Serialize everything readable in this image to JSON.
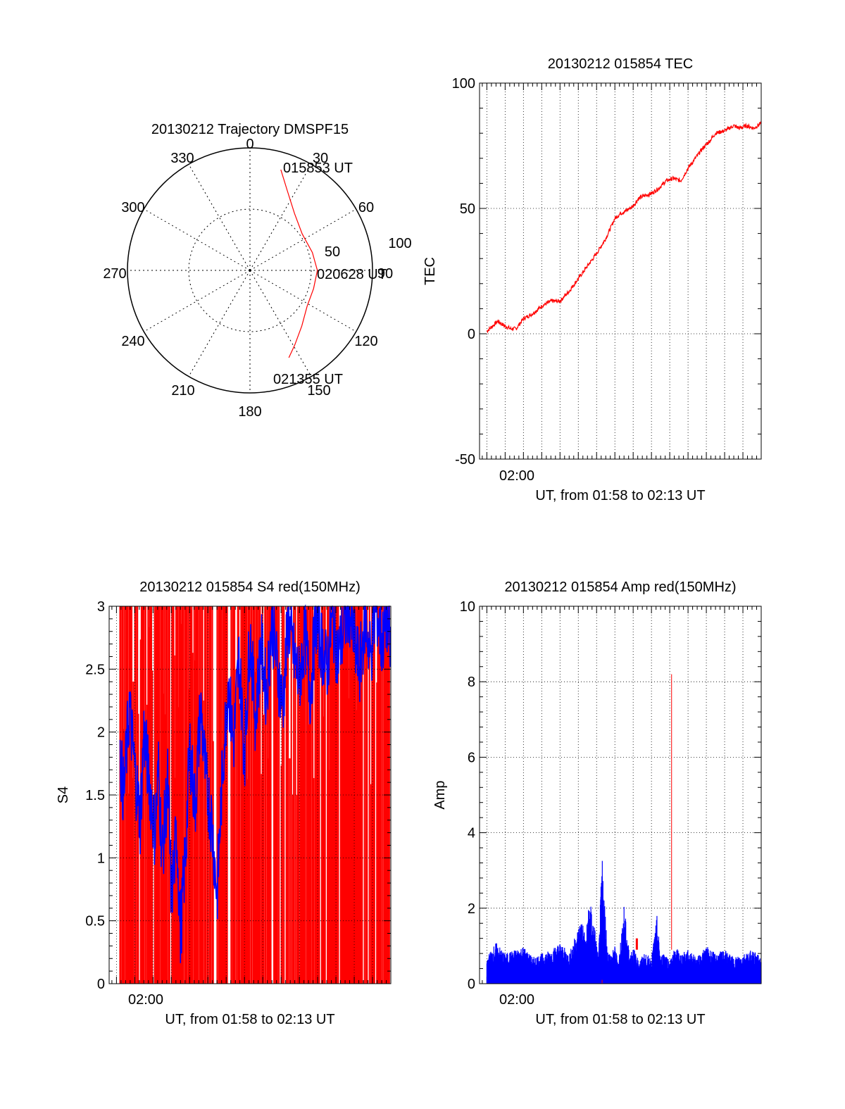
{
  "colors": {
    "primary": "#ff0000",
    "secondary": "#0000ff",
    "axes": "#000000",
    "grid": "#000000"
  },
  "polar": {
    "title": "20130212 Trajectory DMSPF15",
    "azimuth_labels": [
      "0",
      "30",
      "60",
      "90",
      "120",
      "150",
      "180",
      "210",
      "240",
      "270",
      "300",
      "330"
    ],
    "radius_labels": [
      "50",
      "100"
    ],
    "start_label": "015853 UT",
    "mid_label": "020628 UT",
    "end_label": "021355 UT"
  },
  "chart_data": [
    {
      "type": "polar-trajectory",
      "title": "20130212 Trajectory DMSPF15",
      "rlim": [
        0,
        100
      ],
      "azimuth_ticks_deg": [
        0,
        30,
        60,
        90,
        120,
        150,
        180,
        210,
        240,
        270,
        300,
        330
      ],
      "radius_rings": [
        50,
        100
      ],
      "trajectory": [
        {
          "az": 17,
          "r": 86
        },
        {
          "az": 25,
          "r": 72
        },
        {
          "az": 38,
          "r": 59
        },
        {
          "az": 55,
          "r": 52
        },
        {
          "az": 74,
          "r": 53
        },
        {
          "az": 90,
          "r": 55
        },
        {
          "az": 106,
          "r": 54
        },
        {
          "az": 122,
          "r": 55
        },
        {
          "az": 137,
          "r": 62
        },
        {
          "az": 149,
          "r": 71
        },
        {
          "az": 156,
          "r": 78
        }
      ],
      "annotations": [
        "015853 UT",
        "020628 UT",
        "021355 UT"
      ]
    },
    {
      "type": "line",
      "title": "20130212 015854 TEC",
      "xlabel": "UT, from 01:58 to 02:13 UT",
      "ylabel": "TEC",
      "xlim_min": [
        118.6,
        134
      ],
      "ylim": [
        -50,
        100
      ],
      "yticks": [
        -50,
        0,
        50,
        100
      ],
      "xtick_labels": [
        "02:00"
      ],
      "grid": true,
      "series": [
        {
          "color": "#ff0000",
          "x": [
            119.0,
            119.3,
            119.6,
            120.0,
            120.3,
            120.6,
            121.0,
            121.5,
            122.0,
            122.5,
            123.0,
            123.5,
            124.0,
            124.5,
            125.0,
            125.5,
            126.0,
            126.3,
            126.6,
            127.0,
            127.3,
            127.6,
            128.0,
            128.4,
            128.8,
            129.2,
            129.6,
            130.0,
            130.4,
            130.8,
            131.2,
            131.5,
            132.0,
            132.5,
            132.8,
            133.2,
            133.6,
            134.0
          ],
          "y": [
            1,
            3,
            5,
            3,
            2,
            2,
            6,
            8,
            11,
            13,
            13,
            17,
            22,
            27,
            32,
            38,
            46,
            48,
            49,
            51,
            54,
            55,
            56,
            58,
            61,
            62,
            61,
            66,
            70,
            74,
            77,
            80,
            81,
            83,
            82,
            83,
            82,
            84
          ]
        }
      ]
    },
    {
      "type": "line",
      "title": "20130212 015854 S4 red(150MHz)",
      "xlabel": "UT, from 01:58 to 02:13 UT",
      "ylabel": "S4",
      "xlim_min": [
        118.6,
        134
      ],
      "ylim": [
        0,
        3
      ],
      "yticks": [
        0,
        0.5,
        1,
        1.5,
        2,
        2.5,
        3
      ],
      "xtick_labels": [
        "02:00"
      ],
      "grid": true,
      "series": [
        {
          "color": "#ff0000",
          "style": "dense vertical spikes between 0 and 3",
          "x": [
            119.2,
            134
          ],
          "y": [
            0,
            3
          ]
        },
        {
          "color": "#0000ff",
          "x": [
            119.2,
            119.4,
            119.7,
            120.0,
            120.3,
            120.5,
            120.8,
            121.1,
            121.3,
            121.5,
            121.8,
            122.0,
            122.3,
            122.5,
            122.8,
            123.0,
            123.3,
            123.6,
            123.9,
            124.2,
            124.5,
            124.8,
            125.1,
            125.4,
            125.7,
            126.0,
            126.3,
            126.6,
            126.9,
            127.2,
            127.5,
            127.8,
            128.1,
            128.4,
            128.7,
            129.0,
            129.3,
            129.6,
            129.9,
            130.2,
            130.5,
            130.8,
            131.1,
            131.4,
            131.7,
            132.0,
            132.3,
            132.6,
            132.9,
            133.2,
            133.5,
            133.8,
            134.0
          ],
          "y": [
            1.8,
            1.5,
            2.2,
            1.7,
            1.3,
            2.0,
            1.6,
            1.2,
            1.7,
            1.0,
            1.6,
            0.7,
            1.2,
            0.4,
            1.1,
            1.9,
            1.4,
            2.2,
            1.6,
            1.3,
            0.7,
            1.7,
            2.4,
            1.9,
            2.6,
            1.8,
            2.8,
            2.1,
            2.7,
            2.3,
            2.9,
            2.5,
            2.2,
            2.9,
            2.6,
            2.4,
            2.8,
            2.3,
            2.9,
            2.7,
            2.5,
            2.9,
            2.6,
            2.8,
            3.0,
            2.7,
            2.5,
            2.9,
            2.6,
            3.0,
            2.7,
            2.9,
            2.6
          ]
        }
      ]
    },
    {
      "type": "line",
      "title": "20130212 015854 Amp red(150MHz)",
      "xlabel": "UT, from 01:58 to 02:13 UT",
      "ylabel": "Amp",
      "xlim_min": [
        118.6,
        134
      ],
      "ylim": [
        0,
        10
      ],
      "yticks": [
        0,
        2,
        4,
        6,
        8,
        10
      ],
      "xtick_labels": [
        "02:00"
      ],
      "grid": true,
      "series": [
        {
          "color": "#0000ff",
          "x": [
            119.0,
            119.5,
            120.0,
            120.5,
            121.0,
            121.5,
            122.0,
            122.5,
            123.0,
            123.5,
            124.2,
            124.4,
            124.6,
            124.9,
            125.1,
            125.3,
            125.6,
            125.8,
            126.0,
            126.2,
            126.5,
            126.8,
            127.0,
            127.3,
            127.6,
            128.0,
            128.3,
            128.5,
            128.7,
            129.0,
            129.3,
            129.6,
            130.0,
            130.5,
            131.0,
            131.5,
            132.0,
            132.5,
            133.0,
            133.5,
            134.0
          ],
          "y": [
            0.7,
            1.1,
            0.8,
            0.9,
            1.0,
            0.7,
            0.8,
            0.9,
            1.1,
            0.8,
            1.8,
            1.2,
            2.3,
            1.5,
            0.7,
            3.4,
            0.9,
            0.8,
            1.0,
            0.6,
            2.1,
            0.8,
            1.0,
            0.6,
            0.8,
            0.7,
            1.8,
            0.7,
            0.9,
            0.6,
            1.0,
            0.8,
            0.9,
            0.7,
            1.0,
            0.8,
            0.9,
            0.7,
            0.8,
            0.9,
            0.7
          ]
        },
        {
          "color": "#ff0000",
          "x": [
            125.3,
            127.2,
            129.1
          ],
          "y": [
            0.1,
            1.2,
            8.2
          ]
        }
      ]
    }
  ]
}
